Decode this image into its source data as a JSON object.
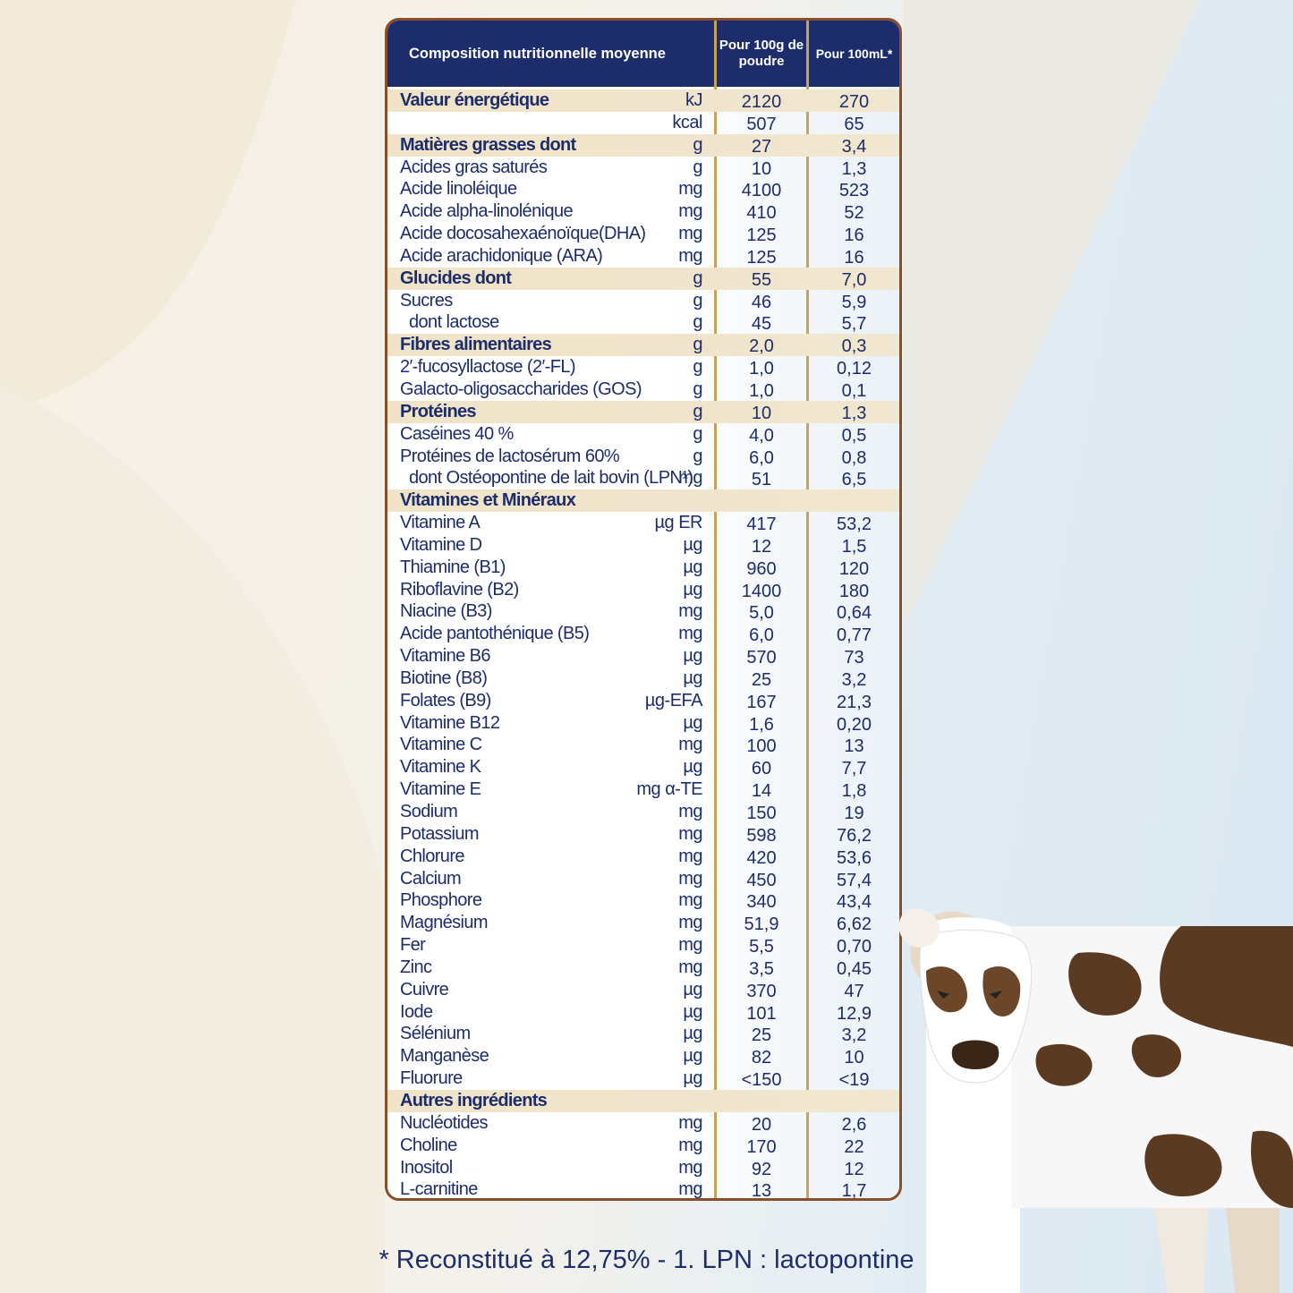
{
  "table": {
    "header": {
      "col0": "Composition nutritionnelle moyenne",
      "col1": "Pour 100g de poudre",
      "col2": "Pour 100mL*"
    },
    "rows": [
      {
        "label": "Valeur énergétique",
        "unit": "kJ",
        "v1": "2120",
        "v2": "270",
        "style": "band"
      },
      {
        "label": "",
        "unit": "kcal",
        "v1": "507",
        "v2": "65",
        "style": ""
      },
      {
        "label": "Matières grasses dont",
        "unit": "g",
        "v1": "27",
        "v2": "3,4",
        "style": "band"
      },
      {
        "label": "Acides gras saturés",
        "unit": "g",
        "v1": "10",
        "v2": "1,3",
        "style": ""
      },
      {
        "label": "Acide linoléique",
        "unit": "mg",
        "v1": "4100",
        "v2": "523",
        "style": ""
      },
      {
        "label": "Acide alpha-linolénique",
        "unit": "mg",
        "v1": "410",
        "v2": "52",
        "style": ""
      },
      {
        "label": "Acide docosahexaénoïque(DHA)",
        "unit": "mg",
        "v1": "125",
        "v2": "16",
        "style": ""
      },
      {
        "label": "Acide arachidonique (ARA)",
        "unit": "mg",
        "v1": "125",
        "v2": "16",
        "style": ""
      },
      {
        "label": "Glucides dont",
        "unit": "g",
        "v1": "55",
        "v2": "7,0",
        "style": "band"
      },
      {
        "label": "Sucres",
        "unit": "g",
        "v1": "46",
        "v2": "5,9",
        "style": ""
      },
      {
        "label": "dont lactose",
        "unit": "g",
        "v1": "45",
        "v2": "5,7",
        "style": "sub"
      },
      {
        "label": "Fibres alimentaires",
        "unit": "g",
        "v1": "2,0",
        "v2": "0,3",
        "style": "band"
      },
      {
        "label": "2′-fucosyllactose (2′-FL)",
        "unit": "g",
        "v1": "1,0",
        "v2": "0,12",
        "style": ""
      },
      {
        "label": "Galacto-oligosaccharides (GOS)",
        "unit": "g",
        "v1": "1,0",
        "v2": "0,1",
        "style": ""
      },
      {
        "label": "Protéines",
        "unit": "g",
        "v1": "10",
        "v2": "1,3",
        "style": "band"
      },
      {
        "label": "Caséines 40 %",
        "unit": "g",
        "v1": "4,0",
        "v2": "0,5",
        "style": ""
      },
      {
        "label": "Protéines de lactosérum 60%",
        "unit": "g",
        "v1": "6,0",
        "v2": "0,8",
        "style": ""
      },
      {
        "label": "dont Ostéopontine de lait bovin (LPN¹)",
        "unit": "mg",
        "v1": "51",
        "v2": "6,5",
        "style": "sub"
      },
      {
        "label": "Vitamines et Minéraux",
        "unit": "",
        "v1": "",
        "v2": "",
        "style": "band"
      },
      {
        "label": "Vitamine A",
        "unit": "µg ER",
        "v1": "417",
        "v2": "53,2",
        "style": ""
      },
      {
        "label": "Vitamine D",
        "unit": "µg",
        "v1": "12",
        "v2": "1,5",
        "style": ""
      },
      {
        "label": "Thiamine (B1)",
        "unit": "µg",
        "v1": "960",
        "v2": "120",
        "style": ""
      },
      {
        "label": "Riboflavine (B2)",
        "unit": "µg",
        "v1": "1400",
        "v2": "180",
        "style": ""
      },
      {
        "label": "Niacine (B3)",
        "unit": "mg",
        "v1": "5,0",
        "v2": "0,64",
        "style": ""
      },
      {
        "label": "Acide pantothénique (B5)",
        "unit": "mg",
        "v1": "6,0",
        "v2": "0,77",
        "style": ""
      },
      {
        "label": "Vitamine B6",
        "unit": "µg",
        "v1": "570",
        "v2": "73",
        "style": ""
      },
      {
        "label": "Biotine (B8)",
        "unit": "µg",
        "v1": "25",
        "v2": "3,2",
        "style": ""
      },
      {
        "label": "Folates (B9)",
        "unit": "µg-EFA",
        "v1": "167",
        "v2": "21,3",
        "style": ""
      },
      {
        "label": "Vitamine B12",
        "unit": "µg",
        "v1": "1,6",
        "v2": "0,20",
        "style": ""
      },
      {
        "label": "Vitamine C",
        "unit": "mg",
        "v1": "100",
        "v2": "13",
        "style": ""
      },
      {
        "label": "Vitamine K",
        "unit": "µg",
        "v1": "60",
        "v2": "7,7",
        "style": ""
      },
      {
        "label": "Vitamine E",
        "unit": "mg α-TE",
        "v1": "14",
        "v2": "1,8",
        "style": ""
      },
      {
        "label": "Sodium",
        "unit": "mg",
        "v1": "150",
        "v2": "19",
        "style": ""
      },
      {
        "label": "Potassium",
        "unit": "mg",
        "v1": "598",
        "v2": "76,2",
        "style": ""
      },
      {
        "label": "Chlorure",
        "unit": "mg",
        "v1": "420",
        "v2": "53,6",
        "style": ""
      },
      {
        "label": "Calcium",
        "unit": "mg",
        "v1": "450",
        "v2": "57,4",
        "style": ""
      },
      {
        "label": "Phosphore",
        "unit": "mg",
        "v1": "340",
        "v2": "43,4",
        "style": ""
      },
      {
        "label": "Magnésium",
        "unit": "mg",
        "v1": "51,9",
        "v2": "6,62",
        "style": ""
      },
      {
        "label": "Fer",
        "unit": "mg",
        "v1": "5,5",
        "v2": "0,70",
        "style": ""
      },
      {
        "label": "Zinc",
        "unit": "mg",
        "v1": "3,5",
        "v2": "0,45",
        "style": ""
      },
      {
        "label": "Cuivre",
        "unit": "µg",
        "v1": "370",
        "v2": "47",
        "style": ""
      },
      {
        "label": "Iode",
        "unit": "µg",
        "v1": "101",
        "v2": "12,9",
        "style": ""
      },
      {
        "label": "Sélénium",
        "unit": "µg",
        "v1": "25",
        "v2": "3,2",
        "style": ""
      },
      {
        "label": "Manganèse",
        "unit": "µg",
        "v1": "82",
        "v2": "10",
        "style": ""
      },
      {
        "label": "Fluorure",
        "unit": "µg",
        "v1": "<150",
        "v2": "<19",
        "style": ""
      },
      {
        "label": "Autres ingrédients",
        "unit": "",
        "v1": "",
        "v2": "",
        "style": "band"
      },
      {
        "label": "Nucléotides",
        "unit": "mg",
        "v1": "20",
        "v2": "2,6",
        "style": ""
      },
      {
        "label": "Choline",
        "unit": "mg",
        "v1": "170",
        "v2": "22",
        "style": ""
      },
      {
        "label": "Inositol",
        "unit": "mg",
        "v1": "92",
        "v2": "12",
        "style": ""
      },
      {
        "label": "L-carnitine",
        "unit": "mg",
        "v1": "13",
        "v2": "1,7",
        "style": ""
      }
    ]
  },
  "footer": {
    "note": "* Reconstitué à 12,75% - 1. LPN : lactopontine"
  },
  "colors": {
    "navy": "#1d2d6b",
    "band": "#efe3c8",
    "border": "#8a4e2a",
    "divider": "#c9a25a"
  },
  "icons": [
    "cow-illustration"
  ]
}
